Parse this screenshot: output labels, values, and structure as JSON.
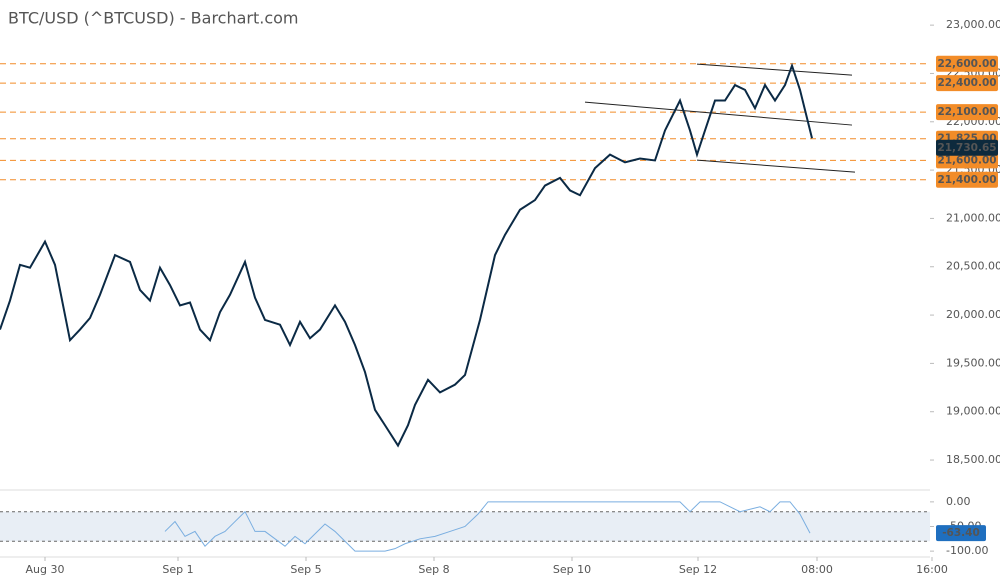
{
  "chart_data": [
    {
      "type": "line",
      "title": "BTC/USD (^BTCUSD) - Barchart.com",
      "color": "#0b2a45",
      "x": [
        0,
        10,
        20,
        30,
        45,
        55,
        70,
        80,
        90,
        100,
        115,
        130,
        140,
        150,
        160,
        170,
        180,
        190,
        200,
        210,
        220,
        230,
        245,
        255,
        265,
        280,
        290,
        300,
        310,
        320,
        335,
        345,
        355,
        365,
        375,
        385,
        398,
        408,
        415,
        428,
        440,
        455,
        465,
        480,
        495,
        505,
        520,
        535,
        545,
        560,
        570,
        580,
        595,
        610,
        625,
        640,
        655,
        665,
        680,
        690,
        697,
        705,
        715,
        725,
        735,
        745,
        755,
        765,
        775,
        785,
        792,
        800,
        812
      ],
      "values": [
        19850,
        20150,
        20520,
        20490,
        20760,
        20520,
        19740,
        19850,
        19970,
        20210,
        20620,
        20550,
        20260,
        20150,
        20490,
        20310,
        20100,
        20130,
        19850,
        19740,
        20030,
        20210,
        20550,
        20180,
        19950,
        19900,
        19690,
        19930,
        19760,
        19850,
        20100,
        19930,
        19690,
        19410,
        19020,
        18860,
        18650,
        18860,
        19070,
        19330,
        19200,
        19280,
        19380,
        19950,
        20620,
        20830,
        21090,
        21190,
        21340,
        21420,
        21290,
        21240,
        21520,
        21660,
        21580,
        21620,
        21600,
        21910,
        22220,
        21910,
        21660,
        21910,
        22220,
        22220,
        22380,
        22330,
        22140,
        22380,
        22220,
        22380,
        22580,
        22330,
        21830
      ],
      "xlim": [
        0,
        930
      ],
      "ylim": [
        18190,
        23260
      ],
      "yticks": [
        {
          "value": 18500,
          "label": "18,500.00"
        },
        {
          "value": 19000,
          "label": "19,000.00"
        },
        {
          "value": 19500,
          "label": "19,500.00"
        },
        {
          "value": 20000,
          "label": "20,000.00"
        },
        {
          "value": 20500,
          "label": "20,500.00"
        },
        {
          "value": 21000,
          "label": "21,000.00"
        },
        {
          "value": 21500,
          "label": "21,500.00"
        },
        {
          "value": 22000,
          "label": "22,000.00"
        },
        {
          "value": 22500,
          "label": "22,500.00"
        },
        {
          "value": 23000,
          "label": "23,000.00"
        }
      ],
      "xticks": [
        {
          "value": 45,
          "label": "Aug 30"
        },
        {
          "value": 178,
          "label": "Sep 1"
        },
        {
          "value": 306,
          "label": "Sep 5"
        },
        {
          "value": 434,
          "label": "Sep 8"
        },
        {
          "value": 572,
          "label": "Sep 10"
        },
        {
          "value": 698,
          "label": "Sep 12"
        },
        {
          "value": 817,
          "label": "08:00"
        },
        {
          "value": 932,
          "label": "16:00"
        }
      ],
      "levels": [
        {
          "value": 22600,
          "label": "22,600.00"
        },
        {
          "value": 22400,
          "label": "22,400.00"
        },
        {
          "value": 22100,
          "label": "22,100.00"
        },
        {
          "value": 21825,
          "label": "21,825.00"
        },
        {
          "value": 21600,
          "label": "21,600.00"
        },
        {
          "value": 21400,
          "label": "21,400.00"
        }
      ],
      "level_color": "#f28c28",
      "last_price": {
        "value": 21730.65,
        "label": "21,730.65"
      },
      "trendlines": [
        {
          "x": [
            697,
            852
          ],
          "y": [
            22597,
            22483
          ]
        },
        {
          "x": [
            585,
            852
          ],
          "y": [
            22203,
            21966
          ]
        },
        {
          "x": [
            697,
            855
          ],
          "y": [
            21603,
            21479
          ]
        }
      ]
    },
    {
      "type": "line",
      "color": "#7aaee0",
      "x": [
        165,
        175,
        185,
        195,
        205,
        215,
        225,
        235,
        245,
        255,
        265,
        275,
        285,
        295,
        305,
        315,
        325,
        335,
        345,
        355,
        370,
        385,
        395,
        405,
        420,
        435,
        450,
        465,
        478,
        488,
        500,
        520,
        540,
        560,
        580,
        600,
        620,
        640,
        660,
        680,
        690,
        700,
        720,
        740,
        760,
        770,
        780,
        790,
        800,
        810
      ],
      "values": [
        -60,
        -40,
        -70,
        -60,
        -90,
        -70,
        -60,
        -40,
        -20,
        -60,
        -60,
        -75,
        -90,
        -70,
        -85,
        -65,
        -45,
        -60,
        -80,
        -100,
        -100,
        -100,
        -95,
        -85,
        -75,
        -70,
        -60,
        -50,
        -25,
        0,
        0,
        0,
        0,
        0,
        0,
        0,
        0,
        0,
        0,
        0,
        -20,
        0,
        0,
        -20,
        -10,
        -20,
        0,
        0,
        -25,
        -63.4
      ],
      "xlim": [
        0,
        930
      ],
      "ylim": [
        -118,
        20
      ],
      "yticks": [
        {
          "value": 0,
          "label": "0.00"
        },
        {
          "value": -50,
          "label": "-50.00"
        },
        {
          "value": -100,
          "label": "-100.00"
        }
      ],
      "levels": [
        -20,
        -80
      ],
      "last_value": {
        "value": -63.4,
        "label": "-63.40"
      }
    }
  ]
}
